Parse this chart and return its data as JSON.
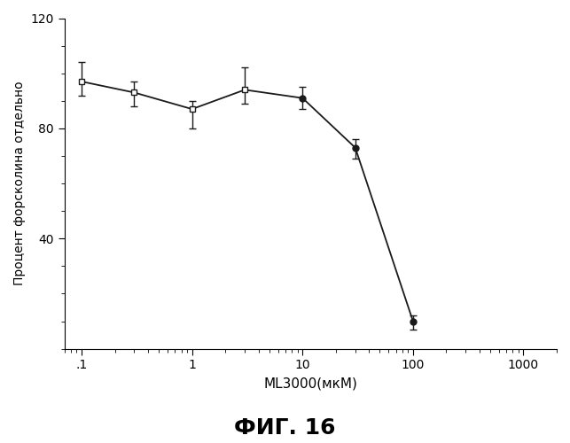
{
  "x": [
    0.1,
    0.3,
    1.0,
    3.0,
    10.0,
    30.0,
    100.0
  ],
  "y": [
    97.0,
    93.0,
    87.0,
    94.0,
    91.0,
    73.0,
    10.0
  ],
  "yerr_low": [
    5.0,
    5.0,
    7.0,
    5.0,
    4.0,
    4.0,
    3.0
  ],
  "yerr_high": [
    7.0,
    4.0,
    3.0,
    8.0,
    4.0,
    3.0,
    2.0
  ],
  "markers_open": [
    true,
    true,
    true,
    true,
    false,
    false,
    false
  ],
  "xlabel": "ML3000(мкМ)",
  "ylabel": "Процент форсколина отдельно",
  "fig_title": "ФИГ. 16",
  "xlim_log": [
    0.07,
    2000
  ],
  "ylim": [
    0,
    120
  ],
  "yticks": [
    40,
    80,
    120
  ],
  "xtick_labels": [
    ".1",
    "1",
    "10",
    "100",
    "1000"
  ],
  "xtick_values": [
    0.1,
    1.0,
    10.0,
    100.0,
    1000.0
  ],
  "line_color": "#1a1a1a",
  "marker_size": 5,
  "capsize": 3,
  "elinewidth": 1.0,
  "linewidth": 1.3,
  "ylabel_fontsize": 10,
  "xlabel_fontsize": 11,
  "tick_fontsize": 10
}
